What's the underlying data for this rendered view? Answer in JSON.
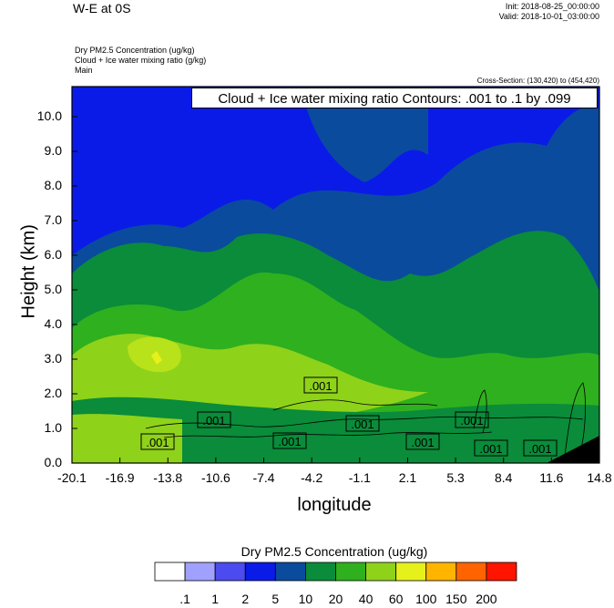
{
  "header": {
    "title": "W-E at 0S",
    "init": "Init: 2018-08-25_00:00:00",
    "valid": "Valid: 2018-10-01_03:00:00",
    "field1": "Dry PM2.5 Concentration   (ug/kg)",
    "field2": "Cloud + Ice water mixing ratio   (g/kg)",
    "field3": "Main",
    "cross_section": "Cross-Section: (130,420) to (454,420)"
  },
  "contour_info": "Cloud + Ice water mixing ratio Contours: .001 to .1 by .099",
  "chart_data": {
    "type": "heatmap",
    "xlabel": "longitude",
    "ylabel": "Height (km)",
    "x_ticks": [
      "-20.1",
      "-16.9",
      "-13.8",
      "-10.6",
      "-7.4",
      "-4.2",
      "-1.1",
      "2.1",
      "5.3",
      "8.4",
      "11.6",
      "14.8"
    ],
    "y_ticks": [
      "0.0",
      "1.0",
      "2.0",
      "3.0",
      "4.0",
      "5.0",
      "6.0",
      "7.0",
      "8.0",
      "9.0",
      "10.0"
    ],
    "xlim": [
      -20.1,
      14.8
    ],
    "ylim": [
      0,
      10.8
    ],
    "contour_labels": [
      ".001",
      ".001",
      ".001",
      ".001",
      ".001",
      ".001",
      ".001",
      ".001",
      ".001"
    ],
    "colorbar": {
      "title": "Dry PM2.5 Concentration  (ug/kg)",
      "labels": [
        ".1",
        "1",
        "2",
        "5",
        "10",
        "20",
        "40",
        "60",
        "100",
        "150",
        "200"
      ],
      "colors": [
        "#ffffff",
        "#a0a0ff",
        "#4b4bef",
        "#0a1be8",
        "#0a4b9e",
        "#0a8c3a",
        "#2fb01e",
        "#8fd21a",
        "#e6f01a",
        "#ffb400",
        "#ff6400",
        "#ff1400"
      ]
    }
  }
}
